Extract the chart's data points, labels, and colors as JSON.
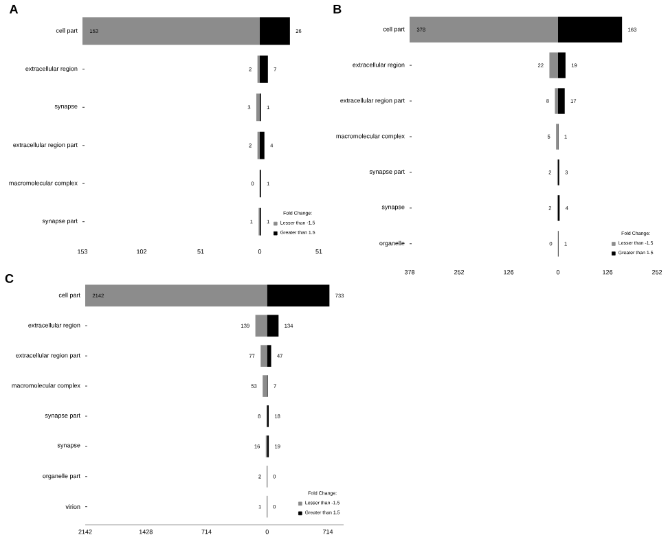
{
  "chart_data": [
    {
      "type": "bar",
      "title": "A",
      "orientation": "horizontal",
      "legend": "bottom right",
      "legend_title": "Fold Change:",
      "data_labels": true,
      "categories": [
        "cell part",
        "extracellular region",
        "synapse",
        "extracellular region part",
        "macromolecular complex",
        "synapse part"
      ],
      "xlim": [
        -153,
        51
      ],
      "xticks": [
        {
          "value": -153,
          "label": "153"
        },
        {
          "value": -102,
          "label": "102"
        },
        {
          "value": -51,
          "label": "51"
        },
        0,
        51
      ],
      "series": [
        {
          "name": "Lesser than -1.5",
          "color": "#8c8c8c",
          "base": [
            -153,
            -2,
            -3,
            -2,
            null,
            -1
          ],
          "values": [
            153,
            2,
            3,
            2,
            0,
            1
          ]
        },
        {
          "name": "Greater than 1.5",
          "color": "#000000",
          "values": [
            26,
            7,
            1,
            4,
            1,
            1
          ]
        }
      ]
    },
    {
      "type": "bar",
      "title": "B",
      "orientation": "horizontal",
      "legend": "bottom right",
      "legend_title": "Fold Change:",
      "data_labels": true,
      "categories": [
        "cell part",
        "extracellular region",
        "extracellular region part",
        "macromolecular complex",
        "synapse part",
        "synapse",
        "organelle"
      ],
      "xlim": [
        -378,
        252
      ],
      "xticks": [
        {
          "value": -378,
          "label": "378"
        },
        {
          "value": -252,
          "label": "252"
        },
        {
          "value": -126,
          "label": "126"
        },
        0,
        126,
        252
      ],
      "series": [
        {
          "name": "Lesser than -1.5",
          "color": "#8c8c8c",
          "base": [
            -378,
            -22,
            -8,
            -5,
            -2,
            -2,
            null
          ],
          "values": [
            378,
            22,
            8,
            5,
            2,
            2,
            0
          ]
        },
        {
          "name": "Greater than 1.5",
          "color": "#000000",
          "values": [
            163,
            19,
            17,
            1,
            3,
            4,
            1
          ]
        }
      ]
    },
    {
      "type": "bar",
      "title": "C",
      "orientation": "horizontal",
      "legend": "bottom right",
      "legend_title": "Fold Change:",
      "data_labels": true,
      "categories": [
        "cell part",
        "extracellular region",
        "extracellular region part",
        "macromolecular complex",
        "synapse part",
        "synapse",
        "organelle part",
        "virion"
      ],
      "xlim": [
        -2142,
        900
      ],
      "xticks": [
        {
          "value": -2142,
          "label": "2142"
        },
        {
          "value": -1428,
          "label": "1428"
        },
        {
          "value": -714,
          "label": "714"
        },
        0,
        714
      ],
      "series": [
        {
          "name": "Lesser than -1.5",
          "color": "#8c8c8c",
          "base": [
            -2142,
            -139,
            -77,
            -53,
            -8,
            -16,
            -2,
            -1
          ],
          "values": [
            2142,
            139,
            77,
            53,
            8,
            16,
            2,
            1
          ]
        },
        {
          "name": "Greater than 1.5",
          "color": "#000000",
          "values": [
            733,
            134,
            47,
            7,
            18,
            19,
            0,
            0
          ]
        }
      ]
    }
  ]
}
